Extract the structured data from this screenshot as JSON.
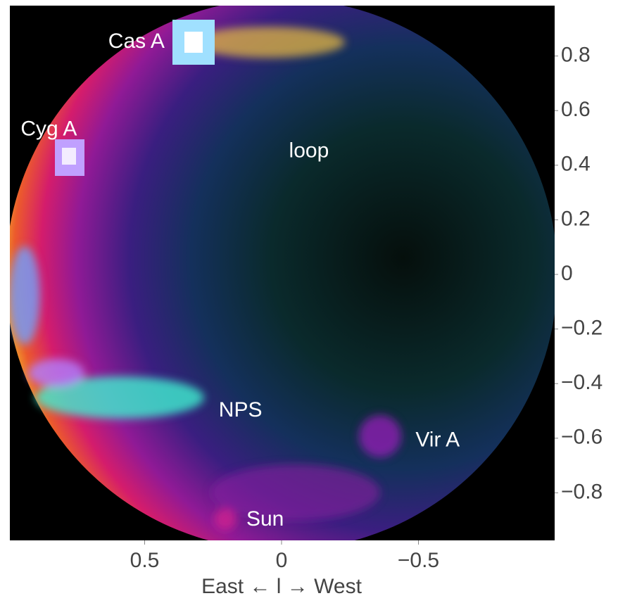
{
  "chart_data": {
    "type": "skymap",
    "xlabel": "East ← l → West",
    "xlim": [
      1,
      -1
    ],
    "ylim": [
      -1,
      1
    ],
    "xticks": [
      0.5,
      0,
      {
        "value": -0.5,
        "label": "−0.5"
      }
    ],
    "yticks": [
      0.8,
      0.6,
      0.4,
      0.2,
      0,
      {
        "value": -0.2,
        "label": "−0.2"
      },
      {
        "value": -0.4,
        "label": "−0.4"
      },
      {
        "value": -0.6,
        "label": "−0.6"
      },
      {
        "value": -0.8,
        "label": "−0.8"
      }
    ],
    "annotations": [
      {
        "text": "Cas A",
        "x": 0.53,
        "y": 0.85
      },
      {
        "text": "Cyg A",
        "x": 0.85,
        "y": 0.53
      },
      {
        "text": "loop",
        "x": -0.1,
        "y": 0.45
      },
      {
        "text": "NPS",
        "x": 0.15,
        "y": -0.5
      },
      {
        "text": "Vir A",
        "x": -0.57,
        "y": -0.61
      },
      {
        "text": "Sun",
        "x": 0.06,
        "y": -0.9
      }
    ]
  }
}
